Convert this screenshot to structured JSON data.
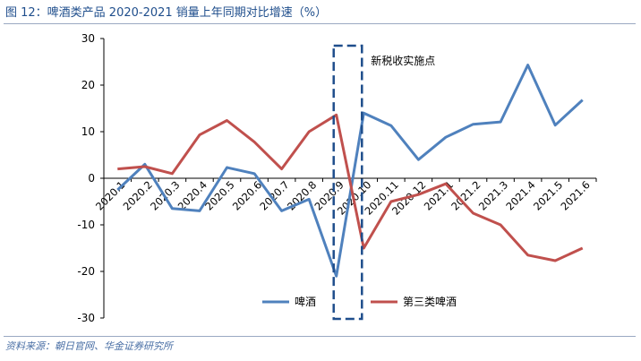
{
  "figure": {
    "title": "图 12：啤酒类产品 2020-2021 销量上年同期对比增速（%）",
    "source": "资料来源：朝日官网、华金证券研究所"
  },
  "chart_data": {
    "type": "line",
    "categories": [
      "2020.1",
      "2020.2",
      "2020.3",
      "2020.4",
      "2020.5",
      "2020.6",
      "2020.7",
      "2020.8",
      "2020.9",
      "2020.10",
      "2020.11",
      "2020.12",
      "2021.1",
      "2021.2",
      "2021.3",
      "2021.4",
      "2021.5",
      "2021.6"
    ],
    "series": [
      {
        "name": "啤酒",
        "color": "#4f81bd",
        "values": [
          -2.5,
          3,
          -6.5,
          -7,
          2.3,
          1,
          -7,
          -4.5,
          -21,
          14,
          11.3,
          4,
          8.8,
          11.6,
          12.1,
          24.3,
          11.4,
          16.8
        ]
      },
      {
        "name": "第三类啤酒",
        "color": "#c0504d",
        "values": [
          2,
          2.5,
          1,
          9.3,
          12.4,
          7.8,
          2,
          10,
          13.6,
          -15,
          -5,
          -3.5,
          -1.2,
          -7.5,
          -10,
          -16.5,
          -17.7,
          -15
        ]
      }
    ],
    "ylim": [
      -30,
      30
    ],
    "yticks": [
      30,
      20,
      10,
      0,
      -10,
      -20,
      -30
    ],
    "grid": false,
    "legend_position": "bottom",
    "annotation": {
      "text": "新税收实施点",
      "category_span": [
        "2020.9",
        "2020.10"
      ]
    }
  }
}
